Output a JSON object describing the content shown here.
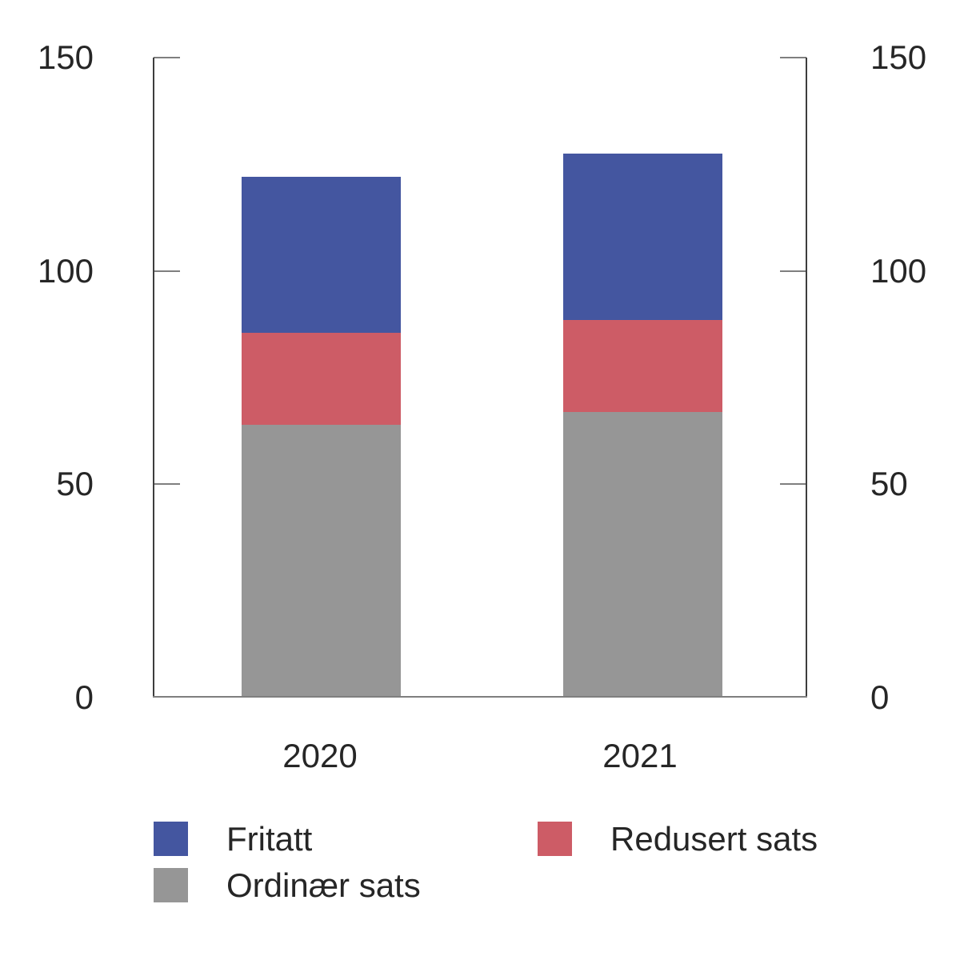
{
  "chart_data": {
    "type": "bar",
    "stacked": true,
    "title": "",
    "xlabel": "",
    "ylabel": "",
    "categories": [
      "2020",
      "2021"
    ],
    "series": [
      {
        "name": "Ordinær sats",
        "color": "#969696",
        "values": [
          64,
          67
        ]
      },
      {
        "name": "Redusert sats",
        "color": "#cd5c66",
        "values": [
          21.5,
          21.5
        ]
      },
      {
        "name": "Fritatt",
        "color": "#4456a0",
        "values": [
          36.5,
          39
        ]
      }
    ],
    "totals": [
      122,
      127.5
    ],
    "ylim": [
      0,
      150
    ],
    "yticks": [
      0,
      50,
      100,
      150
    ],
    "ytick_labels_top_to_bottom": [
      "150",
      "100",
      "50",
      "0"
    ],
    "y_axis_sides": "both",
    "grid": false,
    "legend_position": "bottom"
  },
  "legend": {
    "items": [
      {
        "label": "Fritatt",
        "color": "#4456a0"
      },
      {
        "label": "Redusert sats",
        "color": "#cd5c66"
      },
      {
        "label": "Ordinær sats",
        "color": "#969696"
      }
    ]
  },
  "colors": {
    "axis_line": "#3d3d3d",
    "tick_and_baseline": "#7f7f7f",
    "text": "#262626",
    "background": "#ffffff"
  }
}
